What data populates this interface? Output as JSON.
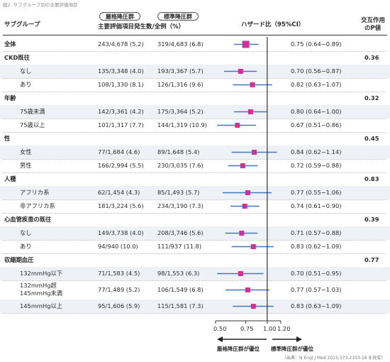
{
  "figure_title": "図2. サブグループ別の主要評価項目",
  "legend": {
    "intensive": "厳格降圧群",
    "standard": "標準降圧群"
  },
  "header": {
    "subgroup": "サブグループ",
    "events": "主要評価項目発生数/全例（%）",
    "hr": "ハザード比（95%CI）",
    "pint_line1": "交互作用",
    "pint_line2": "のP値"
  },
  "rows": [
    {
      "label": "全体",
      "kind": "overall",
      "intensive": "243/4,678 (5.2)",
      "standard": "319/4,683 (6.8)",
      "hr_text": "0.75 (0.64−0.89)",
      "hr": 0.75,
      "lo": 0.64,
      "hi": 0.89
    },
    {
      "label": "CKD既往",
      "kind": "group",
      "p": "0.36"
    },
    {
      "label": "なし",
      "kind": "sub",
      "intensive": "135/3,348 (4.0)",
      "standard": "193/3,367 (5.7)",
      "hr_text": "0.70 (0.56−0.87)",
      "hr": 0.7,
      "lo": 0.56,
      "hi": 0.87
    },
    {
      "label": "あり",
      "kind": "sub",
      "intensive": "108/1,330 (8.1)",
      "standard": "126/1,316 (9.6)",
      "hr_text": "0.82 (0.63−1.07)",
      "hr": 0.82,
      "lo": 0.63,
      "hi": 1.07
    },
    {
      "label": "年齢",
      "kind": "group",
      "p": "0.32"
    },
    {
      "label": "75歳未満",
      "kind": "sub",
      "intensive": "142/3,361 (4.2)",
      "standard": "175/3,364 (5.2)",
      "hr_text": "0.80 (0.64−1.00)",
      "hr": 0.8,
      "lo": 0.64,
      "hi": 1.0
    },
    {
      "label": "75歳以上",
      "kind": "sub",
      "intensive": "101/1,317 (7.7)",
      "standard": "144/1,319 (10.9)",
      "hr_text": "0.67 (0.51−0.86)",
      "hr": 0.67,
      "lo": 0.51,
      "hi": 0.86
    },
    {
      "label": "性",
      "kind": "group",
      "p": "0.45"
    },
    {
      "label": "女性",
      "kind": "sub",
      "intensive": "77/1,684 (4.6)",
      "standard": "89/1,648 (5.4)",
      "hr_text": "0.84 (0.62−1.14)",
      "hr": 0.84,
      "lo": 0.62,
      "hi": 1.14
    },
    {
      "label": "男性",
      "kind": "sub",
      "intensive": "166/2,994 (5.5)",
      "standard": "230/3,035 (7.6)",
      "hr_text": "0.72 (0.59−0.88)",
      "hr": 0.72,
      "lo": 0.59,
      "hi": 0.88
    },
    {
      "label": "人種",
      "kind": "group",
      "p": "0.83"
    },
    {
      "label": "アフリカ系",
      "kind": "sub",
      "intensive": "62/1,454 (4.3)",
      "standard": "85/1,493 (5.7)",
      "hr_text": "0.77 (0.55−1.06)",
      "hr": 0.77,
      "lo": 0.55,
      "hi": 1.06
    },
    {
      "label": "非アフリカ系",
      "kind": "sub",
      "intensive": "181/3,224 (5.6)",
      "standard": "234/3,190 (7.3)",
      "hr_text": "0.74 (0.61−0.90)",
      "hr": 0.74,
      "lo": 0.61,
      "hi": 0.9
    },
    {
      "label": "心血管疾患の既往",
      "kind": "group",
      "p": "0.39"
    },
    {
      "label": "なし",
      "kind": "sub",
      "intensive": "149/3,738 (4.0)",
      "standard": "208/3,746 (5.6)",
      "hr_text": "0.71 (0.57−0.88)",
      "hr": 0.71,
      "lo": 0.57,
      "hi": 0.88
    },
    {
      "label": "あり",
      "kind": "sub",
      "intensive": "94/940 (10.0)",
      "standard": "111/937 (11.8)",
      "hr_text": "0.83 (0.62−1.09)",
      "hr": 0.83,
      "lo": 0.62,
      "hi": 1.09
    },
    {
      "label": "収縮期血圧",
      "kind": "group",
      "p": "0.77"
    },
    {
      "label": "132mmHg以下",
      "kind": "sub",
      "intensive": "71/1,583 (4.5)",
      "standard": "98/1,553 (6.3)",
      "hr_text": "0.70 (0.51−0.95)",
      "hr": 0.7,
      "lo": 0.51,
      "hi": 0.95
    },
    {
      "label": "132mmHg超",
      "label2": "145mmHg未満",
      "kind": "sub2",
      "intensive": "77/1,489 (5.2)",
      "standard": "106/1,549 (6.8)",
      "hr_text": "0.77 (0.57−1.03)",
      "hr": 0.77,
      "lo": 0.57,
      "hi": 1.03
    },
    {
      "label": "145mmHg以上",
      "kind": "sub",
      "intensive": "95/1,606 (5.9)",
      "standard": "115/1,581 (7.3)",
      "hr_text": "0.83 (0.63−1.09)",
      "hr": 0.83,
      "lo": 0.63,
      "hi": 1.09
    }
  ],
  "axis": {
    "ticks": [
      "0.50",
      "0.75",
      "1.00",
      "1.20"
    ],
    "favors_left": "厳格降圧群が優位",
    "favors_right": "標準降圧群が優位"
  },
  "source": "（出典：N Engl J Med 2015;373:2103-16 を改変）",
  "colors": {
    "marker": "#cc3399",
    "ci_line": "#4477bb",
    "ref_line": "#333333",
    "row_band": "#eef2f7"
  },
  "chart_data": {
    "type": "forest",
    "xscale": "log",
    "xlim": [
      0.5,
      1.2
    ],
    "reference": 1.0,
    "categories": [
      "全体",
      "CKD既往:なし",
      "CKD既往:あり",
      "年齢:75歳未満",
      "年齢:75歳以上",
      "性:女性",
      "性:男性",
      "人種:アフリカ系",
      "人種:非アフリカ系",
      "心血管疾患の既往:なし",
      "心血管疾患の既往:あり",
      "収縮期血圧:132mmHg以下",
      "収縮期血圧:132mmHg超145mmHg未満",
      "収縮期血圧:145mmHg以上"
    ],
    "hr": [
      0.75,
      0.7,
      0.82,
      0.8,
      0.67,
      0.84,
      0.72,
      0.77,
      0.74,
      0.71,
      0.83,
      0.7,
      0.77,
      0.83
    ],
    "ci_low": [
      0.64,
      0.56,
      0.63,
      0.64,
      0.51,
      0.62,
      0.59,
      0.55,
      0.61,
      0.57,
      0.62,
      0.51,
      0.57,
      0.63
    ],
    "ci_high": [
      0.89,
      0.87,
      1.07,
      1.0,
      0.86,
      1.14,
      0.88,
      1.06,
      0.9,
      0.88,
      1.09,
      0.95,
      1.03,
      1.09
    ],
    "interaction_p": {
      "CKD既往": 0.36,
      "年齢": 0.32,
      "性": 0.45,
      "人種": 0.83,
      "心血管疾患の既往": 0.39,
      "収縮期血圧": 0.77
    }
  }
}
